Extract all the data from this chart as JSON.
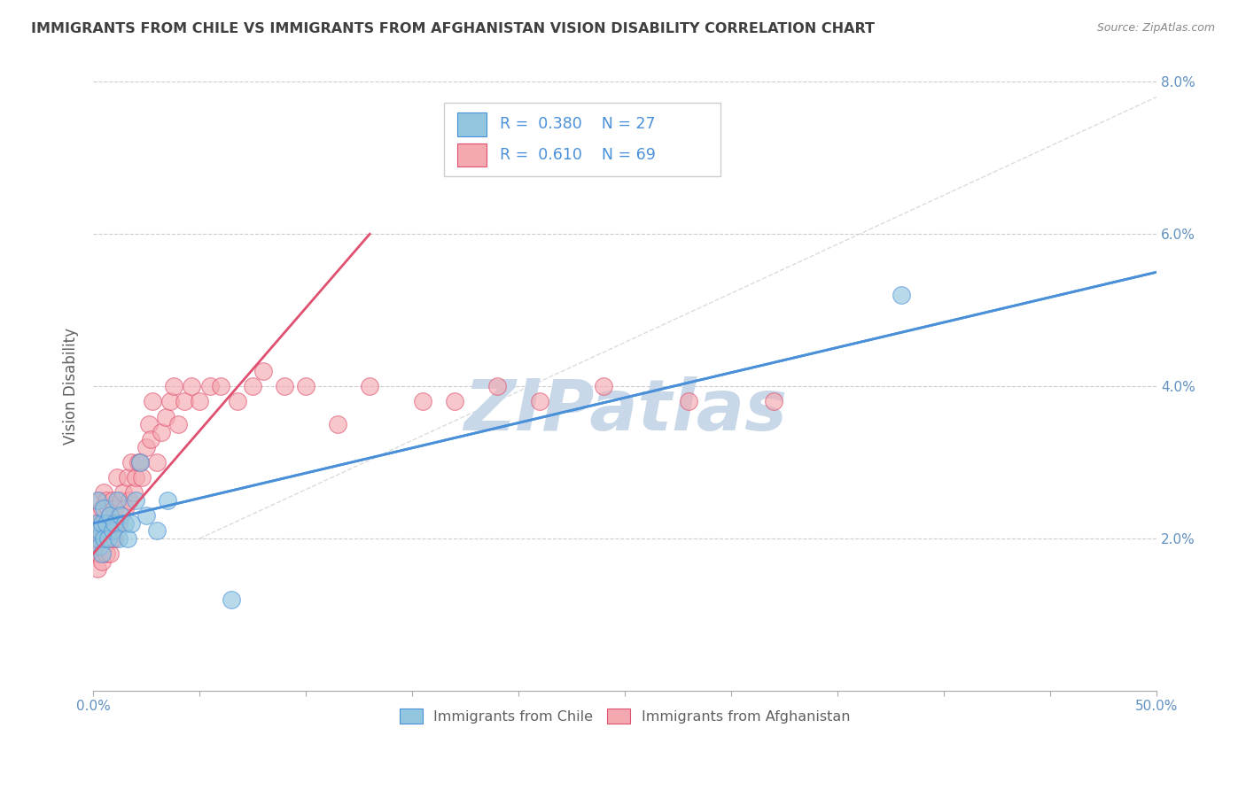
{
  "title": "IMMIGRANTS FROM CHILE VS IMMIGRANTS FROM AFGHANISTAN VISION DISABILITY CORRELATION CHART",
  "source": "Source: ZipAtlas.com",
  "ylabel": "Vision Disability",
  "xlim": [
    0,
    0.5
  ],
  "ylim": [
    0,
    0.08
  ],
  "xticks": [
    0.0,
    0.05,
    0.1,
    0.15,
    0.2,
    0.25,
    0.3,
    0.35,
    0.4,
    0.45,
    0.5
  ],
  "yticks": [
    0.0,
    0.02,
    0.04,
    0.06,
    0.08
  ],
  "xtick_labels": [
    "0.0%",
    "",
    "",
    "",
    "",
    "",
    "",
    "",
    "",
    "",
    "50.0%"
  ],
  "ytick_labels_right": [
    "",
    "2.0%",
    "4.0%",
    "6.0%",
    "8.0%"
  ],
  "chile_color": "#92C5DE",
  "afghanistan_color": "#F4A9B0",
  "chile_R": 0.38,
  "chile_N": 27,
  "afghanistan_R": 0.61,
  "afghanistan_N": 69,
  "legend_label_chile": "Immigrants from Chile",
  "legend_label_afghanistan": "Immigrants from Afghanistan",
  "chile_scatter_x": [
    0.001,
    0.002,
    0.002,
    0.003,
    0.003,
    0.004,
    0.004,
    0.005,
    0.005,
    0.006,
    0.007,
    0.008,
    0.009,
    0.01,
    0.011,
    0.012,
    0.013,
    0.015,
    0.016,
    0.018,
    0.02,
    0.022,
    0.025,
    0.03,
    0.035,
    0.065,
    0.38
  ],
  "chile_scatter_y": [
    0.022,
    0.02,
    0.025,
    0.019,
    0.021,
    0.022,
    0.018,
    0.02,
    0.024,
    0.022,
    0.02,
    0.023,
    0.021,
    0.022,
    0.025,
    0.02,
    0.023,
    0.022,
    0.02,
    0.022,
    0.025,
    0.03,
    0.023,
    0.021,
    0.025,
    0.012,
    0.052
  ],
  "afghanistan_scatter_x": [
    0.001,
    0.001,
    0.001,
    0.002,
    0.002,
    0.002,
    0.003,
    0.003,
    0.003,
    0.004,
    0.004,
    0.004,
    0.005,
    0.005,
    0.005,
    0.006,
    0.006,
    0.006,
    0.007,
    0.007,
    0.008,
    0.008,
    0.009,
    0.009,
    0.01,
    0.01,
    0.011,
    0.011,
    0.012,
    0.013,
    0.014,
    0.015,
    0.016,
    0.017,
    0.018,
    0.019,
    0.02,
    0.021,
    0.022,
    0.023,
    0.025,
    0.026,
    0.027,
    0.028,
    0.03,
    0.032,
    0.034,
    0.036,
    0.038,
    0.04,
    0.043,
    0.046,
    0.05,
    0.055,
    0.06,
    0.068,
    0.075,
    0.08,
    0.09,
    0.1,
    0.115,
    0.13,
    0.155,
    0.17,
    0.19,
    0.21,
    0.24,
    0.28,
    0.32
  ],
  "afghanistan_scatter_y": [
    0.018,
    0.02,
    0.022,
    0.016,
    0.02,
    0.023,
    0.018,
    0.022,
    0.025,
    0.017,
    0.02,
    0.024,
    0.019,
    0.022,
    0.026,
    0.018,
    0.022,
    0.025,
    0.02,
    0.024,
    0.018,
    0.023,
    0.02,
    0.025,
    0.02,
    0.024,
    0.022,
    0.028,
    0.022,
    0.025,
    0.026,
    0.024,
    0.028,
    0.025,
    0.03,
    0.026,
    0.028,
    0.03,
    0.03,
    0.028,
    0.032,
    0.035,
    0.033,
    0.038,
    0.03,
    0.034,
    0.036,
    0.038,
    0.04,
    0.035,
    0.038,
    0.04,
    0.038,
    0.04,
    0.04,
    0.038,
    0.04,
    0.042,
    0.04,
    0.04,
    0.035,
    0.04,
    0.038,
    0.038,
    0.04,
    0.038,
    0.04,
    0.038,
    0.038
  ],
  "background_color": "#ffffff",
  "grid_color": "#cccccc",
  "title_color": "#404040",
  "axis_label_color": "#606060",
  "tick_color": "#6090c0",
  "watermark_text": "ZIPatlas",
  "watermark_color": "#c8d8e8",
  "trendline_chile_color": "#4a90d9",
  "trendline_afghanistan_color": "#e05070",
  "ref_line_color": "#c8ced4",
  "chile_trend_x_start": 0.0,
  "chile_trend_x_end": 0.5,
  "chile_trend_y_start": 0.022,
  "chile_trend_y_end": 0.055,
  "afghanistan_trend_x_start": 0.0,
  "afghanistan_trend_x_end": 0.13,
  "afghanistan_trend_y_start": 0.018,
  "afghanistan_trend_y_end": 0.06
}
